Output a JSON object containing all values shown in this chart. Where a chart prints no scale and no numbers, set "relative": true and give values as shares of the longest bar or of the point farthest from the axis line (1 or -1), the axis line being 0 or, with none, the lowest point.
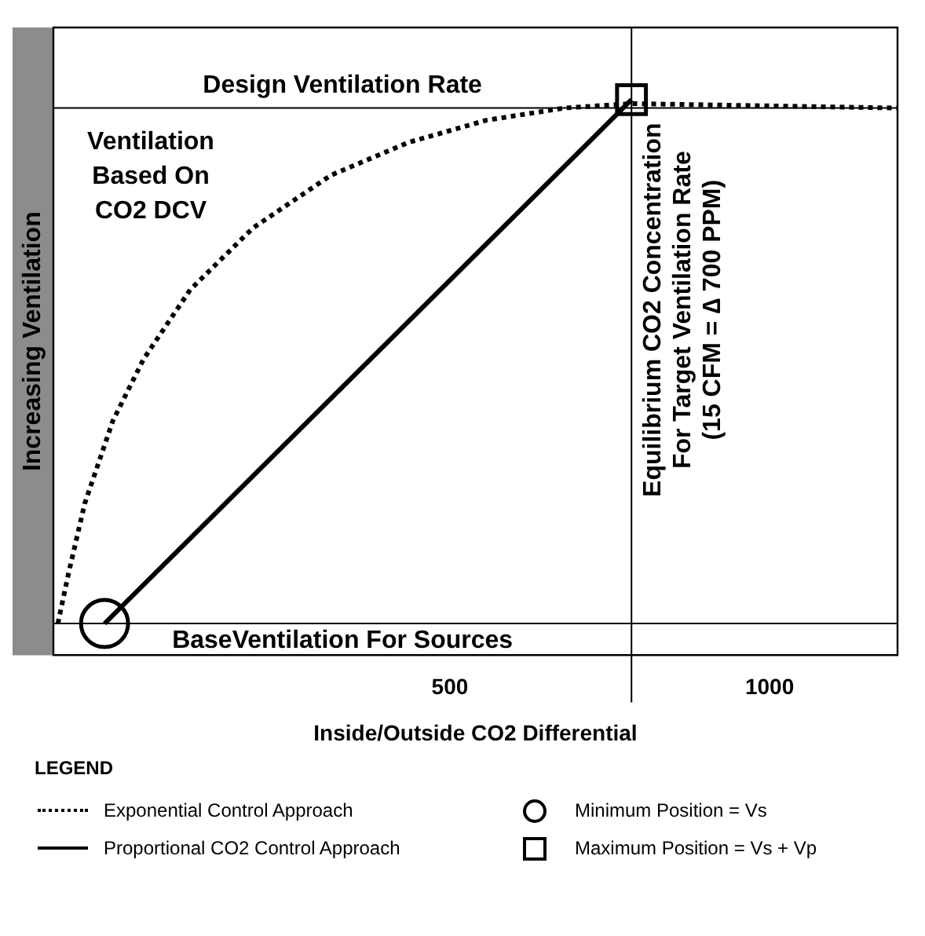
{
  "chart_data": {
    "type": "line",
    "relative": true,
    "ylabel": "Increasing Ventilation",
    "xlim": [
      -120,
      1200
    ],
    "xticks": [
      500,
      1000
    ],
    "xlabel": "Inside/Outside CO2 Differential",
    "tick_labels": "x",
    "grid": false,
    "legend": "bottom",
    "legend_title": "LEGEND",
    "series": [
      {
        "name": "Exponential Control Approach",
        "color": "#000000",
        "line_style": "dotted",
        "marker": "none",
        "x": [
          -113,
          -96,
          -71,
          -27,
          21,
          94,
          192,
          314,
          435,
          557,
          679,
          784,
          1200
        ],
        "values": [
          0.057,
          0.149,
          0.273,
          0.422,
          0.533,
          0.658,
          0.769,
          0.864,
          0.923,
          0.963,
          0.985,
          0.993,
          0.985
        ]
      },
      {
        "name": "Proportional CO2 Control Approach",
        "color": "#000000",
        "line_style": "solid",
        "marker": "none",
        "x": [
          -40,
          784
        ],
        "values": [
          0.057,
          1
        ]
      },
      {
        "name": "Minimum Position = Vs",
        "type": "scatter",
        "color": "#000000",
        "marker": "circle",
        "x": [
          -40
        ],
        "values": [
          0.057
        ]
      },
      {
        "name": "Maximum Position = Vs + Vp",
        "type": "scatter",
        "color": "#000000",
        "marker": "square",
        "x": [
          784
        ],
        "values": [
          1
        ]
      }
    ],
    "ref_lines": [
      {
        "axis": "y",
        "value": 0.057,
        "label": "BaseVentilation For Sources"
      },
      {
        "axis": "y",
        "value": 0.985,
        "label": "Design Ventilation Rate"
      },
      {
        "axis": "x",
        "value": 784,
        "label": "Equilibrium CO2 Concentration\nFor Target Ventilation Rate\n(15 CFM = ∆ 700 PPM)"
      }
    ],
    "annotations": [
      "Ventilation\nBased On\nCO2 DCV"
    ]
  }
}
